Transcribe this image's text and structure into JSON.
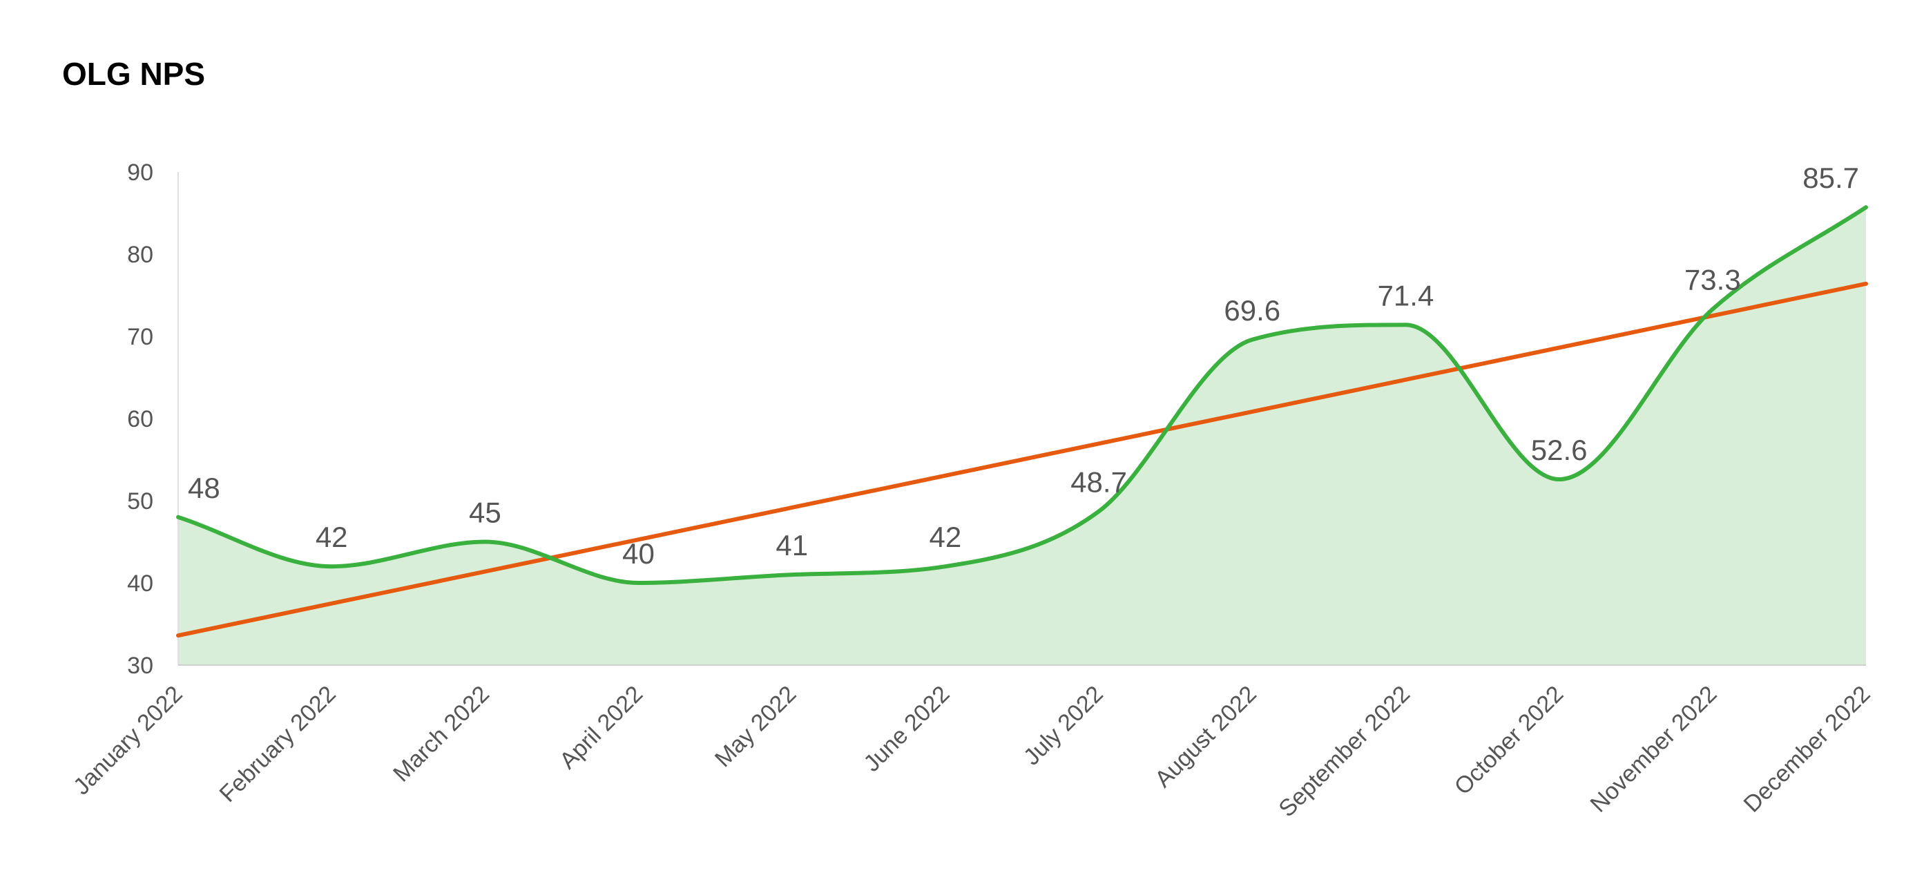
{
  "chart_data": {
    "type": "area",
    "title": "OLG NPS",
    "xlabel": "",
    "ylabel": "",
    "categories": [
      "January 2022",
      "February 2022",
      "March 2022",
      "April 2022",
      "May 2022",
      "June 2022",
      "July 2022",
      "August 2022",
      "September 2022",
      "October 2022",
      "November 2022",
      "December 2022"
    ],
    "series": [
      {
        "values": [
          48,
          42,
          45,
          40,
          41,
          42,
          48.7,
          69.6,
          71.4,
          52.6,
          73.3,
          85.7
        ],
        "data_labels": [
          "48",
          "42",
          "45",
          "40",
          "41",
          "42",
          "48.7",
          "69.6",
          "71.4",
          "52.6",
          "73.3",
          "85.7"
        ],
        "color": "#3ab03e",
        "fill": "#d9eed8",
        "smooth": true
      }
    ],
    "trendline": {
      "type": "linear",
      "color": "#e65a0f",
      "start_value": 33.6,
      "end_value": 76.4
    },
    "ylim": [
      30,
      90
    ],
    "yticks": [
      "30",
      "40",
      "50",
      "60",
      "70",
      "80",
      "90"
    ],
    "grid": false,
    "legend": "none"
  }
}
